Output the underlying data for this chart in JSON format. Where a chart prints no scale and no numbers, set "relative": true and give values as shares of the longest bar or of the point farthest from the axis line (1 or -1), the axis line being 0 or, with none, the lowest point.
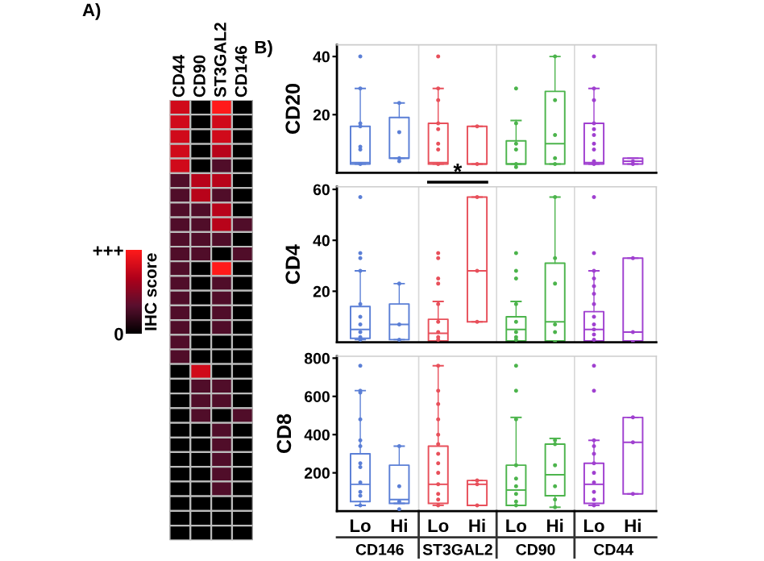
{
  "chart_data": [
    {
      "type": "heatmap",
      "title": "A)",
      "relative": true,
      "categories": [
        "CD44",
        "CD90",
        "ST3GAL2",
        "CD146"
      ],
      "y_categories": [
        null,
        null,
        null,
        null,
        null,
        null,
        null,
        null,
        null,
        null,
        null,
        null,
        null,
        null,
        null,
        null,
        null,
        null,
        null,
        null,
        null,
        null,
        null,
        null,
        null,
        null,
        null,
        null,
        null,
        null
      ],
      "cells": [
        [
          0.8,
          0,
          1,
          0
        ],
        [
          0.8,
          0,
          0.8,
          0
        ],
        [
          0.8,
          0,
          0.8,
          0
        ],
        [
          0.8,
          0,
          0.7,
          0
        ],
        [
          0.8,
          0,
          0.3,
          0
        ],
        [
          0.3,
          0.7,
          0.7,
          0
        ],
        [
          0.3,
          0.7,
          0.3,
          0
        ],
        [
          0.3,
          0.3,
          0.7,
          0
        ],
        [
          0.3,
          0.3,
          0.7,
          0.3
        ],
        [
          0.3,
          0.3,
          0.3,
          0
        ],
        [
          0.3,
          0.3,
          0,
          0.3
        ],
        [
          0.3,
          0,
          1,
          0
        ],
        [
          0.3,
          0,
          0.3,
          0
        ],
        [
          0.3,
          0,
          0.3,
          0
        ],
        [
          0.3,
          0,
          0.3,
          0
        ],
        [
          0.3,
          0,
          0.3,
          0
        ],
        [
          0.3,
          0,
          0,
          0
        ],
        [
          0.3,
          0,
          0,
          0
        ],
        [
          0,
          0.8,
          0,
          0
        ],
        [
          0,
          0.3,
          0.3,
          0
        ],
        [
          0,
          0.3,
          0.3,
          0
        ],
        [
          0,
          0.3,
          0,
          0.3
        ],
        [
          0,
          0,
          0.3,
          0
        ],
        [
          0,
          0,
          0.3,
          0
        ],
        [
          0,
          0,
          0.3,
          0
        ],
        [
          0,
          0,
          0.3,
          0
        ],
        [
          0,
          0,
          0.3,
          0
        ],
        [
          0,
          0,
          0,
          0
        ],
        [
          0,
          0,
          0,
          0
        ],
        [
          0,
          0,
          0,
          0
        ]
      ],
      "cticks": [
        0,
        {
          "value": 1,
          "label": "+++"
        }
      ],
      "clabel": "IHC score"
    },
    {
      "type": "box",
      "title": "B)",
      "ylabel": "CD20",
      "categories": [
        null,
        null,
        null,
        null,
        null,
        null,
        null,
        null
      ],
      "colors": [
        "#5b7fd6",
        "#5b7fd6",
        "#e8505b",
        "#e8505b",
        "#4cb44c",
        "#4cb44c",
        "#a040d0",
        "#a040d0"
      ],
      "boxes": [
        {
          "low": 3,
          "q1": 3,
          "median": 3.5,
          "q3": 16,
          "high": 29,
          "outliers": [
            40,
            29,
            17,
            16,
            9,
            8,
            3
          ]
        },
        {
          "low": 5,
          "q1": 5,
          "median": 5,
          "q3": 19,
          "high": 24,
          "outliers": [
            24,
            14,
            5,
            4
          ]
        },
        {
          "low": 3,
          "q1": 3,
          "median": 3.5,
          "q3": 17,
          "high": 29,
          "outliers": [
            40,
            29,
            25,
            17,
            15,
            10,
            8,
            3
          ]
        },
        {
          "low": 3,
          "q1": 3,
          "median": 3,
          "q3": 16,
          "high": 16,
          "outliers": [
            16,
            3
          ]
        },
        {
          "low": 3,
          "q1": 3,
          "median": 3,
          "q3": 11,
          "high": 18,
          "outliers": [
            29,
            17,
            10,
            8,
            3,
            2
          ]
        },
        {
          "low": 3,
          "q1": 3,
          "median": 10,
          "q3": 28,
          "high": 40,
          "outliers": [
            40,
            25,
            13,
            5,
            3
          ]
        },
        {
          "low": 3,
          "q1": 3,
          "median": 3.5,
          "q3": 17,
          "high": 29,
          "outliers": [
            40,
            29,
            25,
            17,
            15,
            13,
            10,
            8,
            4,
            3
          ]
        },
        {
          "low": 3,
          "q1": 3,
          "median": 4,
          "q3": 5,
          "high": 5,
          "outliers": [
            4,
            3
          ]
        }
      ],
      "ylim": [
        0,
        44
      ],
      "yticks": [
        20,
        40
      ],
      "tick_labels": "y"
    },
    {
      "type": "box",
      "ylabel": "CD4",
      "categories": [
        null,
        null,
        null,
        null,
        null,
        null,
        null,
        null
      ],
      "colors": [
        "#5b7fd6",
        "#5b7fd6",
        "#e8505b",
        "#e8505b",
        "#4cb44c",
        "#4cb44c",
        "#a040d0",
        "#a040d0"
      ],
      "boxes": [
        {
          "low": 1,
          "q1": 1.5,
          "median": 5,
          "q3": 14,
          "high": 28,
          "outliers": [
            57,
            35,
            33,
            28,
            15,
            10,
            7,
            4,
            2,
            1
          ]
        },
        {
          "low": 1,
          "q1": 1,
          "median": 7,
          "q3": 15,
          "high": 23,
          "outliers": [
            23,
            7,
            1
          ]
        },
        {
          "low": 0.5,
          "q1": 0.5,
          "median": 3.5,
          "q3": 9,
          "high": 16,
          "outliers": [
            35,
            33,
            25,
            23,
            15,
            8,
            4,
            2,
            1
          ]
        },
        {
          "low": 8,
          "q1": 8,
          "median": 28,
          "q3": 57,
          "high": 57,
          "outliers": [
            57,
            28,
            8
          ]
        },
        {
          "low": 0.5,
          "q1": 0.5,
          "median": 5,
          "q3": 10,
          "high": 16,
          "outliers": [
            35,
            28,
            25,
            15,
            8,
            4,
            2,
            1
          ]
        },
        {
          "low": 0.5,
          "q1": 0.5,
          "median": 8,
          "q3": 31,
          "high": 57,
          "outliers": [
            57,
            33,
            23,
            7,
            4,
            0
          ]
        },
        {
          "low": 0.5,
          "q1": 0.5,
          "median": 5,
          "q3": 12,
          "high": 28,
          "outliers": [
            57,
            35,
            28,
            25,
            22,
            19,
            15,
            10,
            7,
            5,
            3,
            1
          ]
        },
        {
          "low": 0.5,
          "q1": 0.5,
          "median": 4,
          "q3": 33,
          "high": 33,
          "outliers": [
            33,
            4,
            0
          ]
        }
      ],
      "annotations": [
        "*"
      ],
      "ylim": [
        0,
        61
      ],
      "yticks": [
        20,
        40,
        60
      ],
      "tick_labels": "y"
    },
    {
      "type": "box",
      "ylabel": "CD8",
      "categories": [
        "Lo",
        "Hi",
        "Lo",
        "Hi",
        "Lo",
        "Hi",
        "Lo",
        "Hi"
      ],
      "colors": [
        "#5b7fd6",
        "#5b7fd6",
        "#e8505b",
        "#e8505b",
        "#4cb44c",
        "#4cb44c",
        "#a040d0",
        "#a040d0"
      ],
      "boxes": [
        {
          "low": 30,
          "q1": 50,
          "median": 140,
          "q3": 300,
          "high": 630,
          "outliers": [
            760,
            630,
            620,
            480,
            370,
            340,
            250,
            230,
            150,
            100,
            80,
            30
          ]
        },
        {
          "low": 40,
          "q1": 40,
          "median": 60,
          "q3": 240,
          "high": 340,
          "outliers": [
            340,
            130,
            50,
            10
          ]
        },
        {
          "low": 30,
          "q1": 40,
          "median": 140,
          "q3": 340,
          "high": 760,
          "outliers": [
            760,
            630,
            560,
            480,
            400,
            350,
            300,
            250,
            200,
            140,
            90,
            60,
            30
          ]
        },
        {
          "low": 30,
          "q1": 30,
          "median": 140,
          "q3": 160,
          "high": 160,
          "outliers": [
            160,
            140,
            30
          ]
        },
        {
          "low": 30,
          "q1": 30,
          "median": 110,
          "q3": 240,
          "high": 490,
          "outliers": [
            760,
            630,
            480,
            240,
            170,
            130,
            90,
            50,
            30
          ]
        },
        {
          "low": 20,
          "q1": 80,
          "median": 190,
          "q3": 350,
          "high": 380,
          "outliers": [
            370,
            350,
            240,
            130,
            60,
            20
          ]
        },
        {
          "low": 30,
          "q1": 40,
          "median": 140,
          "q3": 250,
          "high": 370,
          "outliers": [
            760,
            630,
            370,
            340,
            300,
            250,
            200,
            150,
            100,
            60,
            30
          ]
        },
        {
          "low": 90,
          "q1": 90,
          "median": 360,
          "q3": 490,
          "high": 490,
          "outliers": [
            490,
            360,
            90
          ]
        }
      ],
      "annotations": [
        "CD146",
        "ST3GAL2",
        "CD90",
        "CD44"
      ],
      "ylim": [
        0,
        810
      ],
      "yticks": [
        200,
        400,
        600,
        800
      ]
    }
  ]
}
